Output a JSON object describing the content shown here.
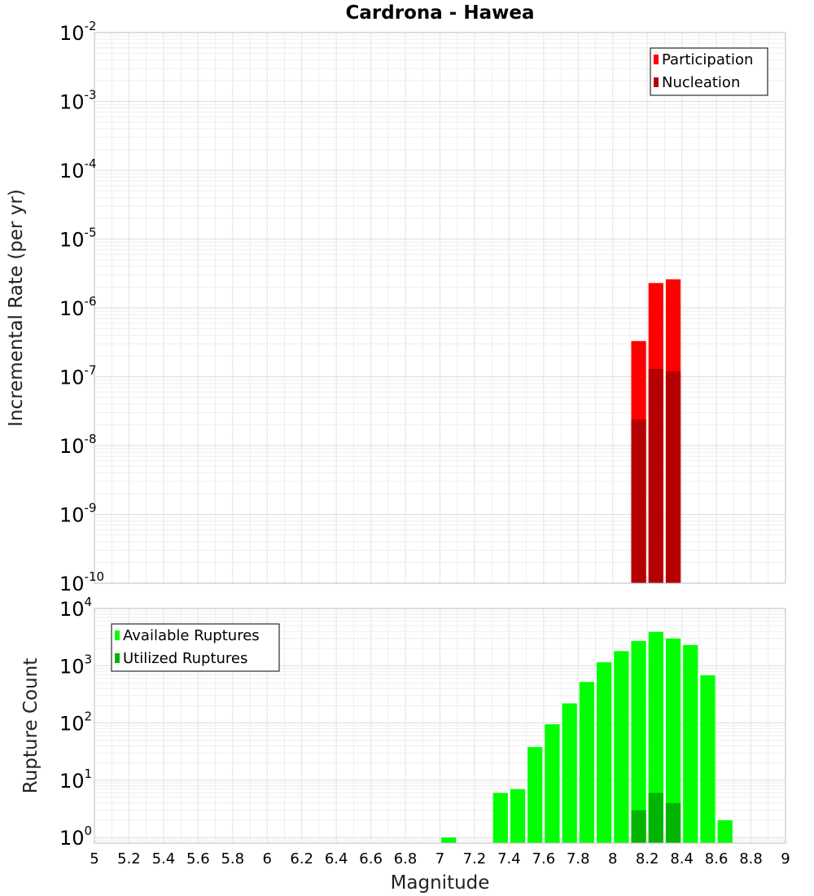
{
  "chart_data": [
    {
      "type": "bar",
      "title": "Cardrona - Hawea",
      "xlabel": "",
      "ylabel": "Incremental Rate (per yr)",
      "yscale": "log",
      "ylim": [
        1e-10,
        0.01
      ],
      "xlim": [
        5,
        9
      ],
      "bin_width": 0.1,
      "grid": true,
      "legend_position": "top-right",
      "series": [
        {
          "name": "Participation",
          "color": "#ff0000",
          "x": [
            8.15,
            8.25,
            8.35
          ],
          "values": [
            3.3e-07,
            2.3e-06,
            2.6e-06
          ]
        },
        {
          "name": "Nucleation",
          "color": "#b40000",
          "x": [
            8.15,
            8.25,
            8.35
          ],
          "values": [
            2.4e-08,
            1.3e-07,
            1.2e-07
          ]
        }
      ]
    },
    {
      "type": "bar",
      "title": "",
      "xlabel": "Magnitude",
      "ylabel": "Rupture Count",
      "yscale": "log",
      "ylim": [
        0.8,
        10000
      ],
      "xlim": [
        5,
        9
      ],
      "bin_width": 0.1,
      "grid": true,
      "legend_position": "top-left",
      "x_ticks": [
        "5",
        "5.2",
        "5.4",
        "5.6",
        "5.8",
        "6",
        "6.2",
        "6.4",
        "6.6",
        "6.8",
        "7",
        "7.2",
        "7.4",
        "7.6",
        "7.8",
        "8",
        "8.2",
        "8.4",
        "8.6",
        "8.8",
        "9"
      ],
      "series": [
        {
          "name": "Available Ruptures",
          "color": "#00ff00",
          "x": [
            7.05,
            7.35,
            7.45,
            7.55,
            7.65,
            7.75,
            7.85,
            7.95,
            8.05,
            8.15,
            8.25,
            8.35,
            8.45,
            8.55,
            8.65
          ],
          "values": [
            1,
            6,
            7,
            38,
            95,
            220,
            520,
            1150,
            1800,
            2700,
            3900,
            3000,
            2300,
            680,
            2
          ]
        },
        {
          "name": "Utilized Ruptures",
          "color": "#00b400",
          "x": [
            8.15,
            8.25,
            8.35
          ],
          "values": [
            3,
            6,
            4
          ]
        }
      ]
    }
  ]
}
